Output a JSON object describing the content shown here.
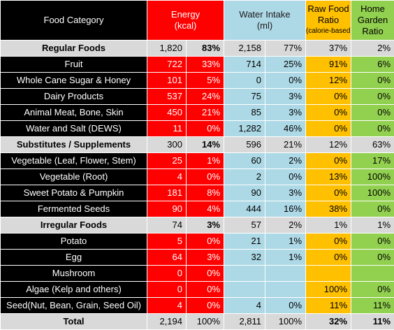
{
  "headers": {
    "category": "Food Category",
    "energy_line1": "Energy",
    "energy_line2": "(kcal)",
    "water_line1": "Water Intake",
    "water_line2": "(ml)",
    "raw_line1": "Raw Food",
    "raw_line2": "Ratio",
    "raw_line3": "(calorie-based)",
    "home_line1": "Home",
    "home_line2": "Garden",
    "home_line3": "Ratio"
  },
  "colors": {
    "header_name": "#000000",
    "energy": "#ff0000",
    "water": "#add8e6",
    "raw": "#ffc000",
    "home": "#92d050",
    "group_row": "#d9d9d9"
  },
  "rows": [
    {
      "type": "group",
      "name": "Regular Foods",
      "en_v": "1,820",
      "en_p": "83%",
      "en_p_bold": true,
      "wa_v": "2,158",
      "wa_p": "77%",
      "raw": "37%",
      "home": "2%"
    },
    {
      "type": "item",
      "name": "Fruit",
      "en_v": "722",
      "en_p": "33%",
      "wa_v": "714",
      "wa_p": "25%",
      "raw": "91%",
      "home": "6%"
    },
    {
      "type": "item",
      "name": "Whole Cane Sugar & Honey",
      "en_v": "101",
      "en_p": "5%",
      "wa_v": "0",
      "wa_p": "0%",
      "raw": "12%",
      "home": "0%"
    },
    {
      "type": "item",
      "name": "Dairy Products",
      "en_v": "537",
      "en_p": "24%",
      "wa_v": "75",
      "wa_p": "3%",
      "raw": "0%",
      "home": "0%"
    },
    {
      "type": "item",
      "name": "Animal Meat, Bone, Skin",
      "en_v": "450",
      "en_p": "21%",
      "wa_v": "85",
      "wa_p": "3%",
      "raw": "0%",
      "home": "0%"
    },
    {
      "type": "item",
      "name": "Water and Salt (DEWS)",
      "en_v": "11",
      "en_p": "0%",
      "wa_v": "1,282",
      "wa_p": "46%",
      "raw": "0%",
      "home": "0%"
    },
    {
      "type": "group",
      "name": "Substitutes / Supplements",
      "en_v": "300",
      "en_p": "14%",
      "en_p_bold": true,
      "wa_v": "596",
      "wa_p": "21%",
      "raw": "12%",
      "home": "63%"
    },
    {
      "type": "item",
      "name": "Vegetable (Leaf, Flower, Stem)",
      "en_v": "25",
      "en_p": "1%",
      "wa_v": "60",
      "wa_p": "2%",
      "raw": "0%",
      "home": "17%"
    },
    {
      "type": "item",
      "name": "Vegetable (Root)",
      "en_v": "4",
      "en_p": "0%",
      "wa_v": "2",
      "wa_p": "0%",
      "raw": "13%",
      "home": "100%"
    },
    {
      "type": "item",
      "name": "Sweet Potato & Pumpkin",
      "en_v": "181",
      "en_p": "8%",
      "wa_v": "90",
      "wa_p": "3%",
      "raw": "0%",
      "home": "100%"
    },
    {
      "type": "item",
      "name": "Fermented Seeds",
      "en_v": "90",
      "en_p": "4%",
      "wa_v": "444",
      "wa_p": "16%",
      "raw": "38%",
      "home": "0%"
    },
    {
      "type": "group",
      "name": "Irregular Foods",
      "en_v": "74",
      "en_p": "3%",
      "en_p_bold": true,
      "wa_v": "57",
      "wa_p": "2%",
      "raw": "1%",
      "home": "1%"
    },
    {
      "type": "item",
      "name": "Potato",
      "en_v": "5",
      "en_p": "0%",
      "wa_v": "21",
      "wa_p": "1%",
      "raw": "0%",
      "home": "0%"
    },
    {
      "type": "item",
      "name": "Egg",
      "en_v": "64",
      "en_p": "3%",
      "wa_v": "32",
      "wa_p": "1%",
      "raw": "0%",
      "home": "0%"
    },
    {
      "type": "item",
      "name": "Mushroom",
      "en_v": "0",
      "en_p": "0%",
      "wa_v": "",
      "wa_p": "",
      "raw": "",
      "home": ""
    },
    {
      "type": "item",
      "name": "Algae (Kelp and others)",
      "en_v": "0",
      "en_p": "0%",
      "wa_v": "",
      "wa_p": "",
      "raw": "100%",
      "home": "0%"
    },
    {
      "type": "item",
      "name": "Seed(Nut, Bean, Grain, Seed Oil)",
      "en_v": "4",
      "en_p": "0%",
      "wa_v": "4",
      "wa_p": "0%",
      "raw": "11%",
      "home": "11%"
    },
    {
      "type": "total",
      "name": "Total",
      "en_v": "2,194",
      "en_p": "100%",
      "wa_v": "2,811",
      "wa_p": "100%",
      "raw": "32%",
      "raw_bold": true,
      "home": "11%",
      "home_bold": true
    }
  ]
}
